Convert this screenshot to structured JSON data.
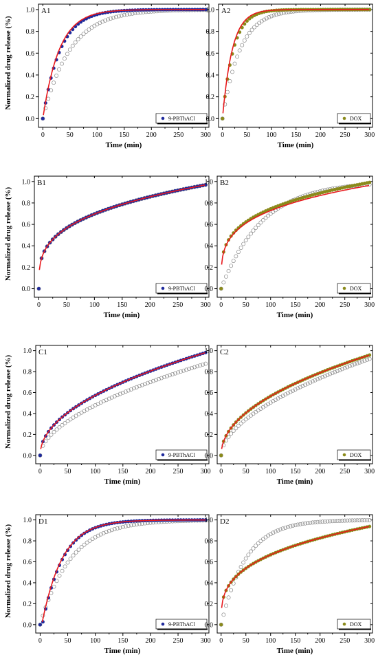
{
  "figure": {
    "ylabel": "Normalized drug release (%)",
    "xlabel": "Time (min)",
    "xticks": [
      0,
      50,
      100,
      150,
      200,
      250,
      300
    ],
    "yticks": [
      "0.0",
      "0.2",
      "0.4",
      "0.6",
      "0.8",
      "1.0"
    ],
    "colors": {
      "pbthacl": "#1f2a9c",
      "dox": "#8a8a1a",
      "fit": "#e8191d",
      "reference": "#8a8a8a"
    }
  },
  "chart_data": [
    {
      "panel": "A1",
      "type": "scatter",
      "legend": "9-PBThACl",
      "xlim": [
        -8,
        306
      ],
      "ylim": [
        -0.08,
        1.05
      ],
      "xlabel": "Time (min)",
      "ylabel": "Normalized drug release (%)",
      "series": [
        {
          "kind": "filled",
          "model": {
            "f": "exp",
            "k": 0.031
          }
        },
        {
          "kind": "open",
          "model": {
            "f": "exp",
            "k": 0.02
          }
        },
        {
          "kind": "fit",
          "model": {
            "f": "exp",
            "k": 0.033
          }
        }
      ]
    },
    {
      "panel": "A2",
      "type": "scatter",
      "legend": "DOX",
      "xlim": [
        -8,
        306
      ],
      "ylim": [
        -0.08,
        1.05
      ],
      "xlabel": "Time (min)",
      "ylabel": "",
      "series": [
        {
          "kind": "filled",
          "model": {
            "f": "exp",
            "k": 0.045
          }
        },
        {
          "kind": "open",
          "model": {
            "f": "exp",
            "k": 0.028
          }
        },
        {
          "kind": "fit",
          "model": {
            "f": "exp",
            "k": 0.05
          }
        }
      ]
    },
    {
      "panel": "B1",
      "type": "scatter",
      "legend": "9-PBThACl",
      "xlim": [
        -8,
        306
      ],
      "ylim": [
        -0.08,
        1.05
      ],
      "xlabel": "Time (min)",
      "ylabel": "Normalized drug release (%)",
      "series": [
        {
          "kind": "filled",
          "model": {
            "f": "pow",
            "k": 0.175,
            "n": 0.3
          }
        },
        {
          "kind": "open",
          "model": {
            "f": "pow",
            "k": 0.175,
            "n": 0.3
          }
        },
        {
          "kind": "fit",
          "model": {
            "f": "pow",
            "k": 0.175,
            "n": 0.3
          }
        }
      ]
    },
    {
      "panel": "B2",
      "type": "scatter",
      "legend": "DOX",
      "xlim": [
        -8,
        306
      ],
      "ylim": [
        -0.08,
        1.05
      ],
      "xlabel": "Time (min)",
      "ylabel": "",
      "series": [
        {
          "kind": "filled",
          "model": {
            "f": "pow",
            "k": 0.225,
            "n": 0.26
          }
        },
        {
          "kind": "open",
          "model": {
            "f": "exp",
            "k": 0.012
          }
        },
        {
          "kind": "fit",
          "model": {
            "f": "pow",
            "k": 0.225,
            "n": 0.255
          }
        }
      ]
    },
    {
      "panel": "C1",
      "type": "scatter",
      "legend": "9-PBThACl",
      "xlim": [
        -8,
        306
      ],
      "ylim": [
        -0.08,
        1.05
      ],
      "xlabel": "Time (min)",
      "ylabel": "Normalized drug release (%)",
      "series": [
        {
          "kind": "filled",
          "model": {
            "f": "pow",
            "k": 0.06,
            "n": 0.49
          }
        },
        {
          "kind": "open",
          "model": {
            "f": "pow",
            "k": 0.038,
            "n": 0.55
          }
        },
        {
          "kind": "fit",
          "model": {
            "f": "pow",
            "k": 0.06,
            "n": 0.49
          }
        }
      ]
    },
    {
      "panel": "C2",
      "type": "scatter",
      "legend": "DOX",
      "xlim": [
        -8,
        306
      ],
      "ylim": [
        -0.08,
        1.05
      ],
      "xlabel": "Time (min)",
      "ylabel": "",
      "series": [
        {
          "kind": "filled",
          "model": {
            "f": "pow",
            "k": 0.062,
            "n": 0.48
          }
        },
        {
          "kind": "open",
          "model": {
            "f": "pow",
            "k": 0.04,
            "n": 0.55
          }
        },
        {
          "kind": "fit",
          "model": {
            "f": "pow",
            "k": 0.062,
            "n": 0.48
          }
        }
      ]
    },
    {
      "panel": "D1",
      "type": "scatter",
      "legend": "9-PBThACl",
      "xlim": [
        -8,
        306
      ],
      "ylim": [
        -0.08,
        1.05
      ],
      "xlabel": "Time (min)",
      "ylabel": "Normalized drug release (%)",
      "series": [
        {
          "kind": "filled",
          "model": {
            "f": "exp",
            "k": 0.027,
            "t0": 4
          }
        },
        {
          "kind": "open",
          "model": {
            "f": "exp",
            "k": 0.018
          }
        },
        {
          "kind": "fit",
          "model": {
            "f": "exp",
            "k": 0.027,
            "t0": 3
          }
        }
      ]
    },
    {
      "panel": "D2",
      "type": "scatter",
      "legend": "DOX",
      "xlim": [
        -8,
        306
      ],
      "ylim": [
        -0.08,
        1.05
      ],
      "xlabel": "Time (min)",
      "ylabel": "",
      "series": [
        {
          "kind": "filled",
          "model": {
            "f": "pow",
            "k": 0.16,
            "n": 0.31
          }
        },
        {
          "kind": "open",
          "model": {
            "f": "exp",
            "k": 0.02
          }
        },
        {
          "kind": "fit",
          "model": {
            "f": "pow",
            "k": 0.16,
            "n": 0.31
          }
        }
      ]
    }
  ]
}
